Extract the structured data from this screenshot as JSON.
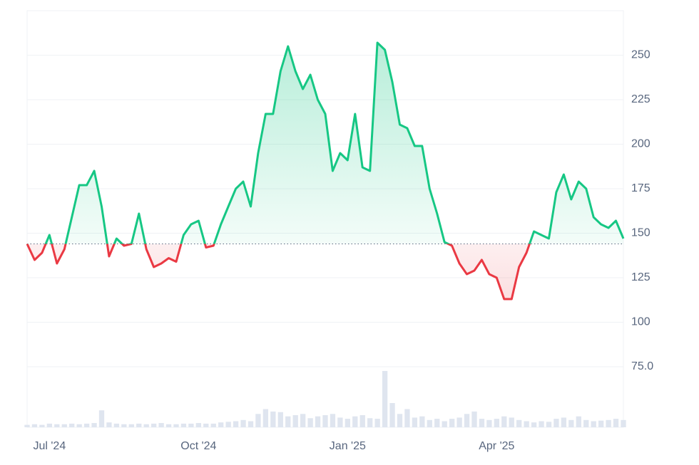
{
  "chart_data": {
    "type": "line",
    "categories": [
      null,
      null,
      null,
      "Jul '24",
      null,
      null,
      null,
      null,
      null,
      null,
      null,
      null,
      null,
      null,
      null,
      null,
      null,
      null,
      null,
      null,
      null,
      null,
      null,
      "Oct '24",
      null,
      null,
      null,
      null,
      null,
      null,
      null,
      null,
      null,
      null,
      null,
      null,
      null,
      null,
      null,
      null,
      null,
      null,
      null,
      "Jan '25",
      null,
      null,
      null,
      null,
      null,
      null,
      null,
      null,
      null,
      null,
      null,
      null,
      null,
      null,
      null,
      null,
      null,
      null,
      null,
      "Apr '25",
      null,
      null,
      null,
      null,
      null,
      null,
      null,
      null,
      null,
      null,
      null,
      null,
      null,
      null,
      null,
      null,
      null
    ],
    "values": [
      144,
      135,
      139,
      149,
      133,
      141,
      159,
      177,
      177,
      185,
      165,
      137,
      147,
      143,
      144,
      161,
      141,
      131,
      133,
      136,
      134,
      149,
      155,
      157,
      142,
      143,
      155,
      165,
      175,
      179,
      165,
      195,
      217,
      217,
      241,
      255,
      241,
      231,
      239,
      225,
      217,
      185,
      195,
      191,
      217,
      187,
      185,
      257,
      253,
      235,
      211,
      209,
      199,
      199,
      175,
      161,
      145,
      143,
      133,
      127,
      129,
      135,
      127,
      125,
      113,
      113,
      131,
      139,
      151,
      149,
      147,
      173,
      183,
      169,
      179,
      175,
      159,
      155,
      153,
      157,
      147
    ],
    "volume": [
      4,
      5,
      4,
      6,
      5,
      5,
      6,
      5,
      6,
      7,
      28,
      8,
      6,
      5,
      5,
      6,
      5,
      6,
      7,
      5,
      5,
      6,
      6,
      7,
      6,
      6,
      8,
      9,
      10,
      12,
      10,
      22,
      30,
      26,
      25,
      18,
      20,
      22,
      15,
      18,
      20,
      22,
      16,
      14,
      18,
      20,
      15,
      14,
      93,
      40,
      22,
      30,
      16,
      18,
      12,
      14,
      10,
      14,
      16,
      22,
      26,
      14,
      12,
      14,
      18,
      16,
      12,
      10,
      8,
      10,
      9,
      14,
      16,
      12,
      18,
      12,
      10,
      11,
      12,
      14,
      12
    ],
    "volume_lim": [
      0,
      100
    ],
    "baseline": 144,
    "ylim": [
      41,
      275
    ],
    "yticks": [
      {
        "value": 75,
        "label": "75.0"
      },
      100,
      125,
      150,
      175,
      200,
      225,
      250
    ],
    "grid": true,
    "up_color": "#16c784",
    "down_color": "#ea3943",
    "volume_color": "#dfe5ef"
  }
}
